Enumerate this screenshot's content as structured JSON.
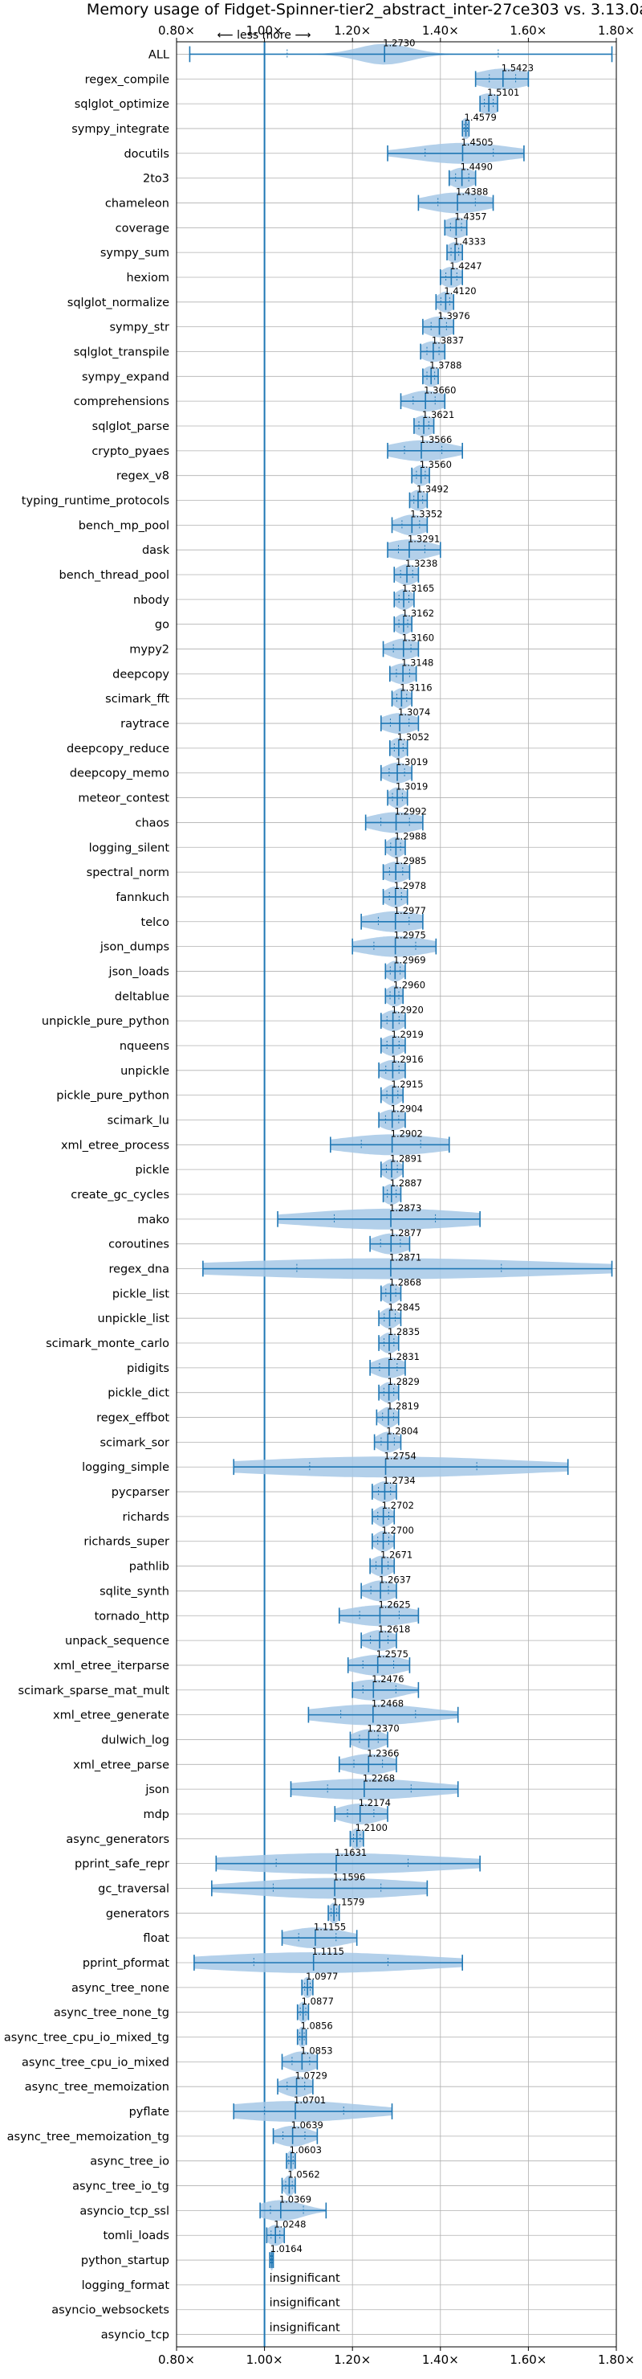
{
  "chart_data": {
    "type": "violin",
    "title": "Memory usage of Fidget-Spinner-tier2_abstract_inter-27ce303 vs. 3.13.0a",
    "xlim": [
      0.8,
      1.8
    ],
    "xticks": [
      "0.80×",
      "1.00×",
      "1.20×",
      "1.40×",
      "1.60×",
      "1.80×"
    ],
    "direction_hint": "⟵ less   more ⟶",
    "baseline": 1.0,
    "grid": true,
    "colors": {
      "accent": "#1f77b4",
      "violin": "#a6c8e6",
      "grid": "#b0b0b0"
    },
    "insignificant_label": "insignificant",
    "benchmarks": [
      {
        "name": "ALL",
        "value": 1.273,
        "lo": 0.83,
        "hi": 1.79,
        "spread": 0.06
      },
      {
        "name": "regex_compile",
        "value": 1.5423,
        "lo": 1.48,
        "hi": 1.6,
        "spread": 0.06
      },
      {
        "name": "sqlglot_optimize",
        "value": 1.5101,
        "lo": 1.49,
        "hi": 1.53,
        "spread": 0.03
      },
      {
        "name": "sympy_integrate",
        "value": 1.4579,
        "lo": 1.45,
        "hi": 1.465,
        "spread": 0.012
      },
      {
        "name": "docutils",
        "value": 1.4505,
        "lo": 1.28,
        "hi": 1.59,
        "spread": 0.11
      },
      {
        "name": "2to3",
        "value": 1.449,
        "lo": 1.42,
        "hi": 1.48,
        "spread": 0.03
      },
      {
        "name": "chameleon",
        "value": 1.4388,
        "lo": 1.35,
        "hi": 1.52,
        "spread": 0.07
      },
      {
        "name": "coverage",
        "value": 1.4357,
        "lo": 1.41,
        "hi": 1.46,
        "spread": 0.03
      },
      {
        "name": "sympy_sum",
        "value": 1.4333,
        "lo": 1.415,
        "hi": 1.45,
        "spread": 0.02
      },
      {
        "name": "hexiom",
        "value": 1.4247,
        "lo": 1.4,
        "hi": 1.45,
        "spread": 0.025
      },
      {
        "name": "sqlglot_normalize",
        "value": 1.412,
        "lo": 1.39,
        "hi": 1.43,
        "spread": 0.02
      },
      {
        "name": "sympy_str",
        "value": 1.3976,
        "lo": 1.36,
        "hi": 1.43,
        "spread": 0.035
      },
      {
        "name": "sqlglot_transpile",
        "value": 1.3837,
        "lo": 1.355,
        "hi": 1.41,
        "spread": 0.03
      },
      {
        "name": "sympy_expand",
        "value": 1.3788,
        "lo": 1.36,
        "hi": 1.395,
        "spread": 0.02
      },
      {
        "name": "comprehensions",
        "value": 1.366,
        "lo": 1.31,
        "hi": 1.41,
        "spread": 0.045
      },
      {
        "name": "sqlglot_parse",
        "value": 1.3621,
        "lo": 1.34,
        "hi": 1.385,
        "spread": 0.025
      },
      {
        "name": "crypto_pyaes",
        "value": 1.3566,
        "lo": 1.28,
        "hi": 1.45,
        "spread": 0.07
      },
      {
        "name": "regex_v8",
        "value": 1.356,
        "lo": 1.335,
        "hi": 1.375,
        "spread": 0.02
      },
      {
        "name": "typing_runtime_protocols",
        "value": 1.3492,
        "lo": 1.33,
        "hi": 1.37,
        "spread": 0.02
      },
      {
        "name": "bench_mp_pool",
        "value": 1.3352,
        "lo": 1.29,
        "hi": 1.37,
        "spread": 0.035
      },
      {
        "name": "dask",
        "value": 1.3291,
        "lo": 1.28,
        "hi": 1.4,
        "spread": 0.055
      },
      {
        "name": "bench_thread_pool",
        "value": 1.3238,
        "lo": 1.295,
        "hi": 1.35,
        "spread": 0.025
      },
      {
        "name": "nbody",
        "value": 1.3165,
        "lo": 1.295,
        "hi": 1.34,
        "spread": 0.02
      },
      {
        "name": "go",
        "value": 1.3162,
        "lo": 1.295,
        "hi": 1.335,
        "spread": 0.02
      },
      {
        "name": "mypy2",
        "value": 1.316,
        "lo": 1.27,
        "hi": 1.35,
        "spread": 0.035
      },
      {
        "name": "deepcopy",
        "value": 1.3148,
        "lo": 1.285,
        "hi": 1.345,
        "spread": 0.03
      },
      {
        "name": "scimark_fft",
        "value": 1.3116,
        "lo": 1.29,
        "hi": 1.335,
        "spread": 0.02
      },
      {
        "name": "raytrace",
        "value": 1.3074,
        "lo": 1.265,
        "hi": 1.35,
        "spread": 0.04
      },
      {
        "name": "deepcopy_reduce",
        "value": 1.3052,
        "lo": 1.285,
        "hi": 1.325,
        "spread": 0.02
      },
      {
        "name": "deepcopy_memo",
        "value": 1.3019,
        "lo": 1.265,
        "hi": 1.335,
        "spread": 0.03
      },
      {
        "name": "meteor_contest",
        "value": 1.3019,
        "lo": 1.28,
        "hi": 1.325,
        "spread": 0.02
      },
      {
        "name": "chaos",
        "value": 1.2992,
        "lo": 1.23,
        "hi": 1.36,
        "spread": 0.06
      },
      {
        "name": "logging_silent",
        "value": 1.2988,
        "lo": 1.275,
        "hi": 1.32,
        "spread": 0.02
      },
      {
        "name": "spectral_norm",
        "value": 1.2985,
        "lo": 1.27,
        "hi": 1.33,
        "spread": 0.03
      },
      {
        "name": "fannkuch",
        "value": 1.2978,
        "lo": 1.27,
        "hi": 1.325,
        "spread": 0.025
      },
      {
        "name": "telco",
        "value": 1.2977,
        "lo": 1.22,
        "hi": 1.36,
        "spread": 0.065
      },
      {
        "name": "json_dumps",
        "value": 1.2975,
        "lo": 1.2,
        "hi": 1.39,
        "spread": 0.08
      },
      {
        "name": "json_loads",
        "value": 1.2969,
        "lo": 1.275,
        "hi": 1.32,
        "spread": 0.02
      },
      {
        "name": "deltablue",
        "value": 1.296,
        "lo": 1.275,
        "hi": 1.315,
        "spread": 0.02
      },
      {
        "name": "unpickle_pure_python",
        "value": 1.292,
        "lo": 1.265,
        "hi": 1.32,
        "spread": 0.025
      },
      {
        "name": "nqueens",
        "value": 1.2919,
        "lo": 1.265,
        "hi": 1.32,
        "spread": 0.025
      },
      {
        "name": "unpickle",
        "value": 1.2916,
        "lo": 1.26,
        "hi": 1.32,
        "spread": 0.03
      },
      {
        "name": "pickle_pure_python",
        "value": 1.2915,
        "lo": 1.265,
        "hi": 1.315,
        "spread": 0.02
      },
      {
        "name": "scimark_lu",
        "value": 1.2904,
        "lo": 1.26,
        "hi": 1.32,
        "spread": 0.03
      },
      {
        "name": "xml_etree_process",
        "value": 1.2902,
        "lo": 1.15,
        "hi": 1.42,
        "spread": 0.12
      },
      {
        "name": "pickle",
        "value": 1.2891,
        "lo": 1.265,
        "hi": 1.315,
        "spread": 0.02
      },
      {
        "name": "create_gc_cycles",
        "value": 1.2887,
        "lo": 1.27,
        "hi": 1.31,
        "spread": 0.02
      },
      {
        "name": "mako",
        "value": 1.2873,
        "lo": 1.03,
        "hi": 1.49,
        "spread": 0.2
      },
      {
        "name": "coroutines",
        "value": 1.2877,
        "lo": 1.24,
        "hi": 1.33,
        "spread": 0.04
      },
      {
        "name": "regex_dna",
        "value": 1.2871,
        "lo": 0.86,
        "hi": 1.79,
        "spread": 0.4
      },
      {
        "name": "pickle_list",
        "value": 1.2868,
        "lo": 1.265,
        "hi": 1.31,
        "spread": 0.02
      },
      {
        "name": "unpickle_list",
        "value": 1.2845,
        "lo": 1.26,
        "hi": 1.31,
        "spread": 0.02
      },
      {
        "name": "scimark_monte_carlo",
        "value": 1.2835,
        "lo": 1.26,
        "hi": 1.305,
        "spread": 0.02
      },
      {
        "name": "pidigits",
        "value": 1.2831,
        "lo": 1.24,
        "hi": 1.32,
        "spread": 0.035
      },
      {
        "name": "pickle_dict",
        "value": 1.2829,
        "lo": 1.26,
        "hi": 1.305,
        "spread": 0.02
      },
      {
        "name": "regex_effbot",
        "value": 1.2819,
        "lo": 1.255,
        "hi": 1.305,
        "spread": 0.02
      },
      {
        "name": "scimark_sor",
        "value": 1.2804,
        "lo": 1.25,
        "hi": 1.31,
        "spread": 0.025
      },
      {
        "name": "logging_simple",
        "value": 1.2754,
        "lo": 0.93,
        "hi": 1.69,
        "spread": 0.32
      },
      {
        "name": "pycparser",
        "value": 1.2734,
        "lo": 1.245,
        "hi": 1.3,
        "spread": 0.025
      },
      {
        "name": "richards",
        "value": 1.2702,
        "lo": 1.245,
        "hi": 1.295,
        "spread": 0.02
      },
      {
        "name": "richards_super",
        "value": 1.27,
        "lo": 1.245,
        "hi": 1.295,
        "spread": 0.02
      },
      {
        "name": "pathlib",
        "value": 1.2671,
        "lo": 1.24,
        "hi": 1.295,
        "spread": 0.025
      },
      {
        "name": "sqlite_synth",
        "value": 1.2637,
        "lo": 1.22,
        "hi": 1.3,
        "spread": 0.035
      },
      {
        "name": "tornado_http",
        "value": 1.2625,
        "lo": 1.17,
        "hi": 1.35,
        "spread": 0.08
      },
      {
        "name": "unpack_sequence",
        "value": 1.2618,
        "lo": 1.22,
        "hi": 1.3,
        "spread": 0.035
      },
      {
        "name": "xml_etree_iterparse",
        "value": 1.2575,
        "lo": 1.19,
        "hi": 1.33,
        "spread": 0.06
      },
      {
        "name": "scimark_sparse_mat_mult",
        "value": 1.2476,
        "lo": 1.2,
        "hi": 1.35,
        "spread": 0.06
      },
      {
        "name": "xml_etree_generate",
        "value": 1.2468,
        "lo": 1.1,
        "hi": 1.44,
        "spread": 0.13
      },
      {
        "name": "dulwich_log",
        "value": 1.237,
        "lo": 1.195,
        "hi": 1.28,
        "spread": 0.035
      },
      {
        "name": "xml_etree_parse",
        "value": 1.2366,
        "lo": 1.17,
        "hi": 1.3,
        "spread": 0.055
      },
      {
        "name": "json",
        "value": 1.2268,
        "lo": 1.06,
        "hi": 1.44,
        "spread": 0.16
      },
      {
        "name": "mdp",
        "value": 1.2174,
        "lo": 1.16,
        "hi": 1.28,
        "spread": 0.05
      },
      {
        "name": "async_generators",
        "value": 1.21,
        "lo": 1.195,
        "hi": 1.225,
        "spread": 0.015
      },
      {
        "name": "pprint_safe_repr",
        "value": 1.1631,
        "lo": 0.89,
        "hi": 1.49,
        "spread": 0.26
      },
      {
        "name": "gc_traversal",
        "value": 1.1596,
        "lo": 0.88,
        "hi": 1.37,
        "spread": 0.2
      },
      {
        "name": "generators",
        "value": 1.1579,
        "lo": 1.145,
        "hi": 1.17,
        "spread": 0.012
      },
      {
        "name": "float",
        "value": 1.1155,
        "lo": 1.04,
        "hi": 1.21,
        "spread": 0.07
      },
      {
        "name": "pprint_pformat",
        "value": 1.1115,
        "lo": 0.84,
        "hi": 1.45,
        "spread": 0.26
      },
      {
        "name": "async_tree_none",
        "value": 1.0977,
        "lo": 1.085,
        "hi": 1.11,
        "spread": 0.012
      },
      {
        "name": "async_tree_none_tg",
        "value": 1.0877,
        "lo": 1.075,
        "hi": 1.1,
        "spread": 0.012
      },
      {
        "name": "async_tree_cpu_io_mixed_tg",
        "value": 1.0856,
        "lo": 1.075,
        "hi": 1.095,
        "spread": 0.01
      },
      {
        "name": "async_tree_cpu_io_mixed",
        "value": 1.0853,
        "lo": 1.04,
        "hi": 1.12,
        "spread": 0.035
      },
      {
        "name": "async_tree_memoization",
        "value": 1.0729,
        "lo": 1.03,
        "hi": 1.11,
        "spread": 0.035
      },
      {
        "name": "pyflate",
        "value": 1.0701,
        "lo": 0.93,
        "hi": 1.29,
        "spread": 0.16
      },
      {
        "name": "async_tree_memoization_tg",
        "value": 1.0639,
        "lo": 1.02,
        "hi": 1.12,
        "spread": 0.04
      },
      {
        "name": "async_tree_io",
        "value": 1.0603,
        "lo": 1.05,
        "hi": 1.07,
        "spread": 0.01
      },
      {
        "name": "async_tree_io_tg",
        "value": 1.0562,
        "lo": 1.04,
        "hi": 1.07,
        "spread": 0.012
      },
      {
        "name": "asyncio_tcp_ssl",
        "value": 1.0369,
        "lo": 0.99,
        "hi": 1.14,
        "spread": 0.05
      },
      {
        "name": "tomli_loads",
        "value": 1.0248,
        "lo": 1.005,
        "hi": 1.045,
        "spread": 0.02
      },
      {
        "name": "python_startup",
        "value": 1.0164,
        "lo": 1.012,
        "hi": 1.02,
        "spread": 0.004
      },
      {
        "name": "logging_format",
        "value": null
      },
      {
        "name": "asyncio_websockets",
        "value": null
      },
      {
        "name": "asyncio_tcp",
        "value": null
      }
    ]
  }
}
